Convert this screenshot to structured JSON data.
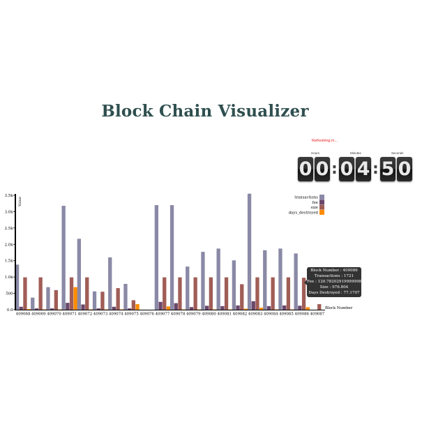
{
  "page": {
    "title": "Block Chain Visualizer"
  },
  "countdown": {
    "refresh_text": "Refreshing in...",
    "labels": {
      "hours": "Hours",
      "minutes": "Minutes",
      "seconds": "Seconds"
    },
    "digits": [
      "0",
      "0",
      "0",
      "4",
      "5",
      "0"
    ]
  },
  "tooltip": {
    "lines": [
      "Block Number : 409086",
      "Transactions : 1721",
      "Fee : 120.78202919999998",
      "Size : 976.804",
      "Days Destroyed : 77.1707"
    ]
  },
  "chart_data": {
    "type": "bar",
    "categories": [
      "409068",
      "409069",
      "409070",
      "409071",
      "409072",
      "409073",
      "409074",
      "409075",
      "409076",
      "409077",
      "409078",
      "409079",
      "409080",
      "409081",
      "409082",
      "409083",
      "409084",
      "409085",
      "409086",
      "409087"
    ],
    "series": [
      {
        "name": "transactions",
        "color": "#8a89a6",
        "values": [
          1380,
          370,
          690,
          3180,
          2170,
          560,
          1600,
          790,
          0,
          3200,
          3200,
          1320,
          1770,
          1870,
          1510,
          3550,
          1820,
          1870,
          1721,
          0
        ]
      },
      {
        "name": "fee",
        "color": "#6b486b",
        "values": [
          90,
          40,
          40,
          210,
          160,
          40,
          90,
          40,
          0,
          240,
          200,
          80,
          120,
          110,
          130,
          260,
          110,
          130,
          121,
          0
        ]
      },
      {
        "name": "size",
        "color": "#a05d56",
        "values": [
          990,
          990,
          600,
          990,
          990,
          550,
          660,
          290,
          0,
          990,
          990,
          990,
          990,
          990,
          780,
          990,
          990,
          990,
          977,
          170
        ]
      },
      {
        "name": "days_destroyed",
        "color": "#ff8c00",
        "values": [
          20,
          10,
          10,
          690,
          10,
          10,
          10,
          170,
          0,
          100,
          10,
          10,
          10,
          10,
          30,
          60,
          10,
          10,
          77,
          0
        ]
      }
    ],
    "ylabel": "Value",
    "xlabel": "Block Number",
    "yticks": [
      "0.0",
      "500",
      "1.0k",
      "1.5k",
      "2.0k",
      "2.5k",
      "3.0k",
      "3.5k"
    ],
    "ylim": [
      0,
      3500
    ],
    "legend_position": "top-right"
  }
}
